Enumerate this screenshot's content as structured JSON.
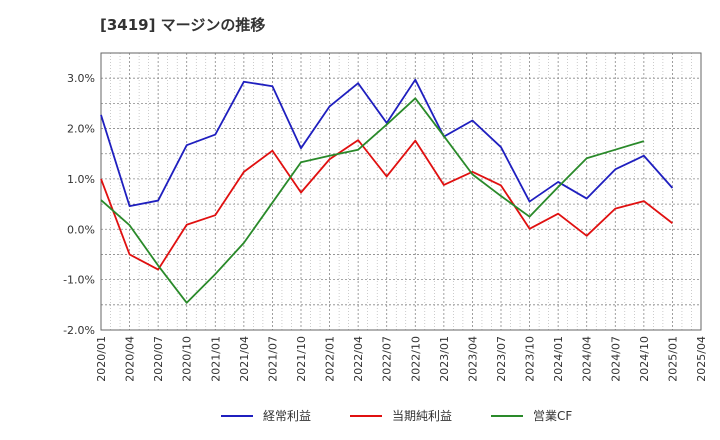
{
  "chart_data": {
    "type": "line",
    "title": "[3419]  マージンの推移",
    "x": [
      "2020/01",
      "2020/04",
      "2020/07",
      "2020/10",
      "2021/01",
      "2021/04",
      "2021/07",
      "2021/10",
      "2022/01",
      "2022/04",
      "2022/07",
      "2022/10",
      "2023/01",
      "2023/04",
      "2023/07",
      "2023/10",
      "2024/01",
      "2024/04",
      "2024/07",
      "2024/10",
      "2025/01",
      "2025/04"
    ],
    "yticks": [
      "-2.0%",
      "-1.0%",
      "0.0%",
      "1.0%",
      "2.0%",
      "3.0%"
    ],
    "ylim": [
      -2.0,
      3.5
    ],
    "grid": true,
    "legend_position": "bottom",
    "series": [
      {
        "name": "経常利益",
        "color": "#1f1fbf",
        "values": [
          2.27,
          0.46,
          0.57,
          1.67,
          1.88,
          2.93,
          2.84,
          1.61,
          2.44,
          2.9,
          2.11,
          2.97,
          1.84,
          2.16,
          1.63,
          0.55,
          0.94,
          0.61,
          1.19,
          1.46,
          0.82,
          null
        ]
      },
      {
        "name": "当期純利益",
        "color": "#e01010",
        "values": [
          1.0,
          -0.5,
          -0.8,
          0.09,
          0.28,
          1.14,
          1.56,
          0.73,
          1.39,
          1.77,
          1.05,
          1.76,
          0.88,
          1.14,
          0.87,
          0.01,
          0.31,
          -0.13,
          0.41,
          0.56,
          0.12,
          null
        ]
      },
      {
        "name": "営業CF",
        "color": "#2a8a2a",
        "values": [
          0.58,
          0.08,
          -0.72,
          -1.46,
          -0.89,
          -0.27,
          0.53,
          1.33,
          1.46,
          1.58,
          2.08,
          2.6,
          1.85,
          1.09,
          0.66,
          0.25,
          0.84,
          1.41,
          1.58,
          1.75,
          null,
          null
        ]
      }
    ]
  }
}
